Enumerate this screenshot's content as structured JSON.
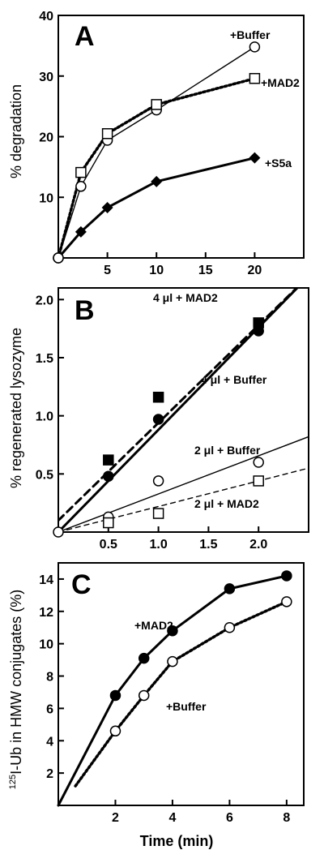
{
  "chart_data": [
    {
      "type": "line",
      "panel": "A",
      "xlabel": "",
      "ylabel": "% degradation",
      "xlim": [
        0,
        25
      ],
      "ylim": [
        0,
        40
      ],
      "xticks": [
        5,
        10,
        15,
        20
      ],
      "yticks": [
        10,
        20,
        30,
        40
      ],
      "series": [
        {
          "name": "+Buffer",
          "marker": "open-circle",
          "line": "solid-thin",
          "x": [
            0,
            2.3,
            5,
            10,
            20
          ],
          "y": [
            0,
            11.8,
            19.4,
            24.4,
            34.8
          ]
        },
        {
          "name": "+MAD2",
          "marker": "open-square",
          "line": "dotted-thick",
          "x": [
            0,
            2.3,
            5,
            10,
            20
          ],
          "y": [
            0,
            14.1,
            20.5,
            25.3,
            29.6
          ]
        },
        {
          "name": "+S5a",
          "marker": "filled-diamond",
          "line": "solid-thick",
          "x": [
            0,
            2.3,
            5,
            10,
            20
          ],
          "y": [
            0,
            4.3,
            8.3,
            12.6,
            16.5
          ]
        }
      ]
    },
    {
      "type": "scatter",
      "panel": "B",
      "xlabel": "",
      "ylabel": "% regenerated lysozyme",
      "xlim": [
        0,
        2.5
      ],
      "ylim": [
        0,
        2.1
      ],
      "xticks": [
        0.5,
        1.0,
        1.5,
        2.0
      ],
      "xtick_labels": [
        "0.5",
        "1.0",
        "1.5",
        "2.0"
      ],
      "yticks": [
        0.5,
        1.0,
        1.5,
        2.0
      ],
      "ytick_labels": [
        "0.5",
        "1.0",
        "1.5",
        "2.0"
      ],
      "series": [
        {
          "name": "4 μl + MAD2",
          "marker": "filled-square",
          "line": "dashed-thick",
          "x": [
            0.5,
            1.0,
            2.0
          ],
          "y": [
            0.62,
            1.16,
            1.8
          ],
          "fit": {
            "x": [
              0,
              2.5
            ],
            "y": [
              0.1,
              2.2
            ]
          }
        },
        {
          "name": "4 μl + Buffer",
          "marker": "filled-circle",
          "line": "solid-thick",
          "x": [
            0.5,
            1.0,
            2.0
          ],
          "y": [
            0.48,
            0.97,
            1.73
          ],
          "fit": {
            "x": [
              0,
              2.5
            ],
            "y": [
              0.0,
              2.2
            ]
          }
        },
        {
          "name": "2 μl + Buffer",
          "marker": "open-circle",
          "line": "solid-thin",
          "x": [
            0.5,
            1.0,
            2.0
          ],
          "y": [
            0.13,
            0.44,
            0.6
          ],
          "fit": {
            "x": [
              0,
              2.5
            ],
            "y": [
              0.0,
              0.82
            ]
          }
        },
        {
          "name": "2 μl + MAD2",
          "marker": "open-square",
          "line": "dashed-thin",
          "x": [
            0.5,
            1.0,
            2.0
          ],
          "y": [
            0.08,
            0.16,
            0.44
          ],
          "fit": {
            "x": [
              0,
              2.5
            ],
            "y": [
              0.0,
              0.55
            ]
          }
        }
      ],
      "origin_point": {
        "x": 0,
        "y": 0,
        "marker": "open-circle"
      }
    },
    {
      "type": "line",
      "panel": "C",
      "xlabel": "Time (min)",
      "ylabel_superscript": "125",
      "ylabel": "I-Ub in HMW conjugates (%)",
      "xlim": [
        0,
        8.6
      ],
      "ylim": [
        0,
        15
      ],
      "xticks": [
        2,
        4,
        6,
        8
      ],
      "yticks": [
        2,
        4,
        6,
        8,
        10,
        12,
        14
      ],
      "series": [
        {
          "name": "+MAD2",
          "marker": "filled-circle",
          "line": "solid-thick",
          "x": [
            0,
            2,
            3,
            4,
            6,
            8
          ],
          "y": [
            0,
            6.8,
            9.1,
            10.8,
            13.4,
            14.2
          ]
        },
        {
          "name": "+Buffer",
          "marker": "open-circle",
          "line": "dotted-thick",
          "x": [
            0.6,
            2,
            3,
            4,
            6,
            8
          ],
          "y": [
            1.2,
            4.6,
            6.8,
            8.9,
            11.0,
            12.6
          ]
        }
      ]
    }
  ],
  "panel_labels": {
    "a": "A",
    "b": "B",
    "c": "C"
  },
  "axis_labels": {
    "a_y": "% degradation",
    "b_y": "% regenerated lysozyme",
    "c_y_sup": "125",
    "c_y": "I-Ub in HMW conjugates (%)",
    "c_x": "Time (min)"
  },
  "series_labels": {
    "a_buffer": "+Buffer",
    "a_mad2": "+MAD2",
    "a_s5a": "+S5a",
    "b_4mad2": "4 μl + MAD2",
    "b_4buffer": "4 μl + Buffer",
    "b_2buffer": "2 μl + Buffer",
    "b_2mad2": "2 μl + MAD2",
    "c_mad2": "+MAD2",
    "c_buffer": "+Buffer"
  },
  "colors": {
    "ink": "#000000",
    "background": "#ffffff"
  }
}
